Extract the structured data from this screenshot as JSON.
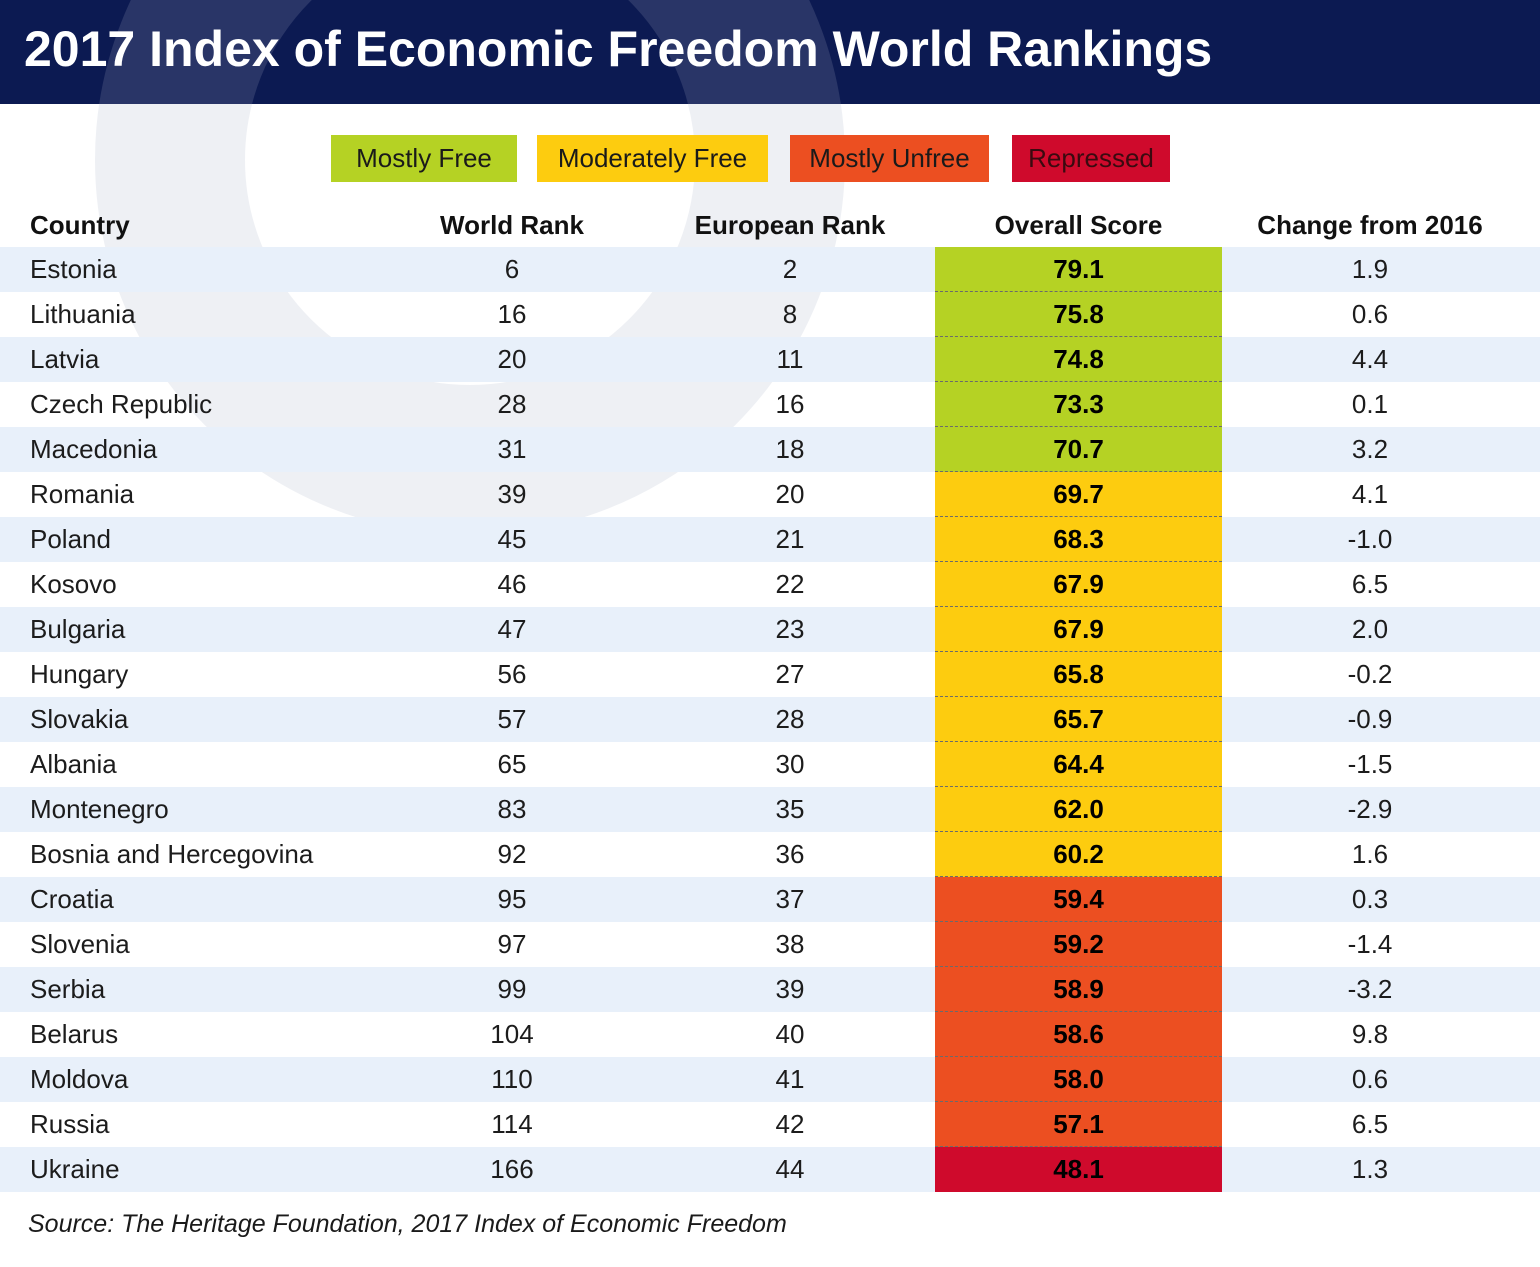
{
  "title": "2017 Index of Economic Freedom World Rankings",
  "colors": {
    "header_bg": "#0c1a52",
    "mostly_free": "#b5d224",
    "moderately_free": "#fdcc0f",
    "mostly_unfree": "#ec4f21",
    "repressed": "#cf0a2c",
    "row_alt": "#e8f0fa"
  },
  "legend": [
    {
      "label": "Mostly Free",
      "color": "#b5d224"
    },
    {
      "label": "Moderately Free",
      "color": "#fdcc0f"
    },
    {
      "label": "Mostly Unfree",
      "color": "#ec4f21"
    },
    {
      "label": "Repressed",
      "color": "#cf0a2c"
    }
  ],
  "chart_data": {
    "type": "table",
    "columns": [
      "Country",
      "World Rank",
      "European Rank",
      "Overall Score",
      "Change from 2016"
    ],
    "rows": [
      {
        "country": "Estonia",
        "world_rank": "6",
        "european_rank": "2",
        "score": "79.1",
        "change": "1.9",
        "category": "Mostly Free"
      },
      {
        "country": "Lithuania",
        "world_rank": "16",
        "european_rank": "8",
        "score": "75.8",
        "change": "0.6",
        "category": "Mostly Free"
      },
      {
        "country": "Latvia",
        "world_rank": "20",
        "european_rank": "11",
        "score": "74.8",
        "change": "4.4",
        "category": "Mostly Free"
      },
      {
        "country": "Czech Republic",
        "world_rank": "28",
        "european_rank": "16",
        "score": "73.3",
        "change": "0.1",
        "category": "Mostly Free"
      },
      {
        "country": "Macedonia",
        "world_rank": "31",
        "european_rank": "18",
        "score": "70.7",
        "change": "3.2",
        "category": "Mostly Free"
      },
      {
        "country": "Romania",
        "world_rank": "39",
        "european_rank": "20",
        "score": "69.7",
        "change": "4.1",
        "category": "Moderately Free"
      },
      {
        "country": "Poland",
        "world_rank": "45",
        "european_rank": "21",
        "score": "68.3",
        "change": "-1.0",
        "category": "Moderately Free"
      },
      {
        "country": "Kosovo",
        "world_rank": "46",
        "european_rank": "22",
        "score": "67.9",
        "change": "6.5",
        "category": "Moderately Free"
      },
      {
        "country": "Bulgaria",
        "world_rank": "47",
        "european_rank": "23",
        "score": "67.9",
        "change": "2.0",
        "category": "Moderately Free"
      },
      {
        "country": "Hungary",
        "world_rank": "56",
        "european_rank": "27",
        "score": "65.8",
        "change": "-0.2",
        "category": "Moderately Free"
      },
      {
        "country": "Slovakia",
        "world_rank": "57",
        "european_rank": "28",
        "score": "65.7",
        "change": "-0.9",
        "category": "Moderately Free"
      },
      {
        "country": "Albania",
        "world_rank": "65",
        "european_rank": "30",
        "score": "64.4",
        "change": "-1.5",
        "category": "Moderately Free"
      },
      {
        "country": "Montenegro",
        "world_rank": "83",
        "european_rank": "35",
        "score": "62.0",
        "change": "-2.9",
        "category": "Moderately Free"
      },
      {
        "country": "Bosnia and Hercegovina",
        "world_rank": "92",
        "european_rank": "36",
        "score": "60.2",
        "change": "1.6",
        "category": "Moderately Free"
      },
      {
        "country": "Croatia",
        "world_rank": "95",
        "european_rank": "37",
        "score": "59.4",
        "change": "0.3",
        "category": "Mostly Unfree"
      },
      {
        "country": "Slovenia",
        "world_rank": "97",
        "european_rank": "38",
        "score": "59.2",
        "change": "-1.4",
        "category": "Mostly Unfree"
      },
      {
        "country": "Serbia",
        "world_rank": "99",
        "european_rank": "39",
        "score": "58.9",
        "change": "-3.2",
        "category": "Mostly Unfree"
      },
      {
        "country": "Belarus",
        "world_rank": "104",
        "european_rank": "40",
        "score": "58.6",
        "change": "9.8",
        "category": "Mostly Unfree"
      },
      {
        "country": "Moldova",
        "world_rank": "110",
        "european_rank": "41",
        "score": "58.0",
        "change": "0.6",
        "category": "Mostly Unfree"
      },
      {
        "country": "Russia",
        "world_rank": "114",
        "european_rank": "42",
        "score": "57.1",
        "change": "6.5",
        "category": "Mostly Unfree"
      },
      {
        "country": "Ukraine",
        "world_rank": "166",
        "european_rank": "44",
        "score": "48.1",
        "change": "1.3",
        "category": "Repressed"
      }
    ]
  },
  "source": "Source: The Heritage Foundation, 2017 Index of Economic Freedom"
}
